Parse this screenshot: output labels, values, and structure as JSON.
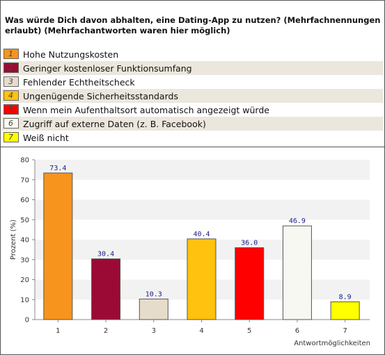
{
  "question": "Was würde Dich davon abhalten, eine Dating-App zu nutzen? (Mehrfachnennungen erlaubt) (Mehrfachantworten waren hier möglich)",
  "legend": [
    {
      "num": "1",
      "label": "Hohe Nutzungskosten",
      "color": "#f7941d"
    },
    {
      "num": "2",
      "label": "Geringer kostenloser Funktionsumfang",
      "color": "#9b0a34"
    },
    {
      "num": "3",
      "label": "Fehlender Echtheitscheck",
      "color": "#e6dccb"
    },
    {
      "num": "4",
      "label": "Ungenügende Sicherheitsstandards",
      "color": "#ffc20e"
    },
    {
      "num": "5",
      "label": "Wenn mein Aufenthaltsort automatisch angezeigt würde",
      "color": "#ff0000"
    },
    {
      "num": "6",
      "label": "Zugriff auf externe Daten (z. B. Facebook)",
      "color": "#f8f8f2"
    },
    {
      "num": "7",
      "label": "Weiß nicht",
      "color": "#ffff00"
    }
  ],
  "chart_data": {
    "type": "bar",
    "categories": [
      "1",
      "2",
      "3",
      "4",
      "5",
      "6",
      "7"
    ],
    "values": [
      73.4,
      30.4,
      10.3,
      40.4,
      36.0,
      46.9,
      8.9
    ],
    "value_labels": [
      "73.4",
      "30.4",
      "10.3",
      "40.4",
      "36.0",
      "46.9",
      "8.9"
    ],
    "colors": [
      "#f7941d",
      "#9b0a34",
      "#e6dccb",
      "#ffc20e",
      "#ff0000",
      "#f8f8f2",
      "#ffff00"
    ],
    "xlabel": "Antwortmöglichkeiten",
    "ylabel": "Prozent (%)",
    "ylim": [
      0,
      80
    ],
    "yticks": [
      0,
      10,
      20,
      30,
      40,
      50,
      60,
      70,
      80
    ],
    "grid": "horizontal bands"
  }
}
